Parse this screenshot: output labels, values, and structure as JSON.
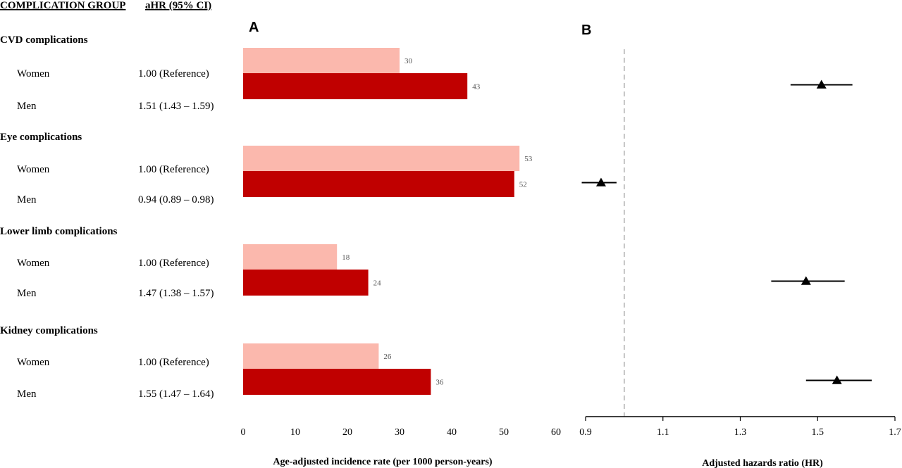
{
  "headers": {
    "group": "COMPLICATION GROUP",
    "ahr": "aHR (95% CI)"
  },
  "panel_a_label": "A",
  "panel_b_label": "B",
  "groups": [
    {
      "name": "CVD complications",
      "rows": [
        {
          "sex": "Women",
          "ahr_text": "1.00 (Reference)"
        },
        {
          "sex": "Men",
          "ahr_text": "1.51 (1.43 – 1.59)"
        }
      ]
    },
    {
      "name": "Eye complications",
      "rows": [
        {
          "sex": "Women",
          "ahr_text": "1.00 (Reference)"
        },
        {
          "sex": "Men",
          "ahr_text": "0.94 (0.89 – 0.98)"
        }
      ]
    },
    {
      "name": "Lower limb complications",
      "rows": [
        {
          "sex": "Women",
          "ahr_text": "1.00 (Reference)"
        },
        {
          "sex": "Men",
          "ahr_text": "1.47 (1.38 – 1.57)"
        }
      ]
    },
    {
      "name": "Kidney complications",
      "rows": [
        {
          "sex": "Women",
          "ahr_text": "1.00 (Reference)"
        },
        {
          "sex": "Men",
          "ahr_text": "1.55 (1.47 – 1.64)"
        }
      ]
    }
  ],
  "chart_data": [
    {
      "type": "bar",
      "orientation": "horizontal",
      "panel": "A",
      "categories": [
        "CVD complications",
        "Eye complications",
        "Lower limb complications",
        "Kidney complications"
      ],
      "series": [
        {
          "name": "Women",
          "values": [
            30,
            53,
            18,
            26
          ],
          "color": "#fbb8ad"
        },
        {
          "name": "Men",
          "values": [
            43,
            52,
            24,
            36
          ],
          "color": "#c00000"
        }
      ],
      "data_labels": [
        "30",
        "53",
        "18",
        "26",
        "43",
        "52",
        "24",
        "36"
      ],
      "xlabel": "Age-adjusted incidence rate (per 1000 person-years)",
      "xlim": [
        0,
        60
      ],
      "xticks": [
        "0",
        "10",
        "20",
        "30",
        "40",
        "50",
        "60"
      ],
      "grid": false
    },
    {
      "type": "scatter",
      "panel": "B",
      "categories": [
        "CVD complications",
        "Eye complications",
        "Lower limb complications",
        "Kidney complications"
      ],
      "points": [
        {
          "hr": 1.51,
          "lo": 1.43,
          "hi": 1.59
        },
        {
          "hr": 0.94,
          "lo": 0.89,
          "hi": 0.98
        },
        {
          "hr": 1.47,
          "lo": 1.38,
          "hi": 1.57
        },
        {
          "hr": 1.55,
          "lo": 1.47,
          "hi": 1.64
        }
      ],
      "reference_line": 1.0,
      "xlabel": "Adjusted hazards ratio (HR)",
      "xlim": [
        0.9,
        1.7
      ],
      "xticks": [
        "0.9",
        "1.1",
        "1.3",
        "1.5",
        "1.7"
      ],
      "marker": "triangle",
      "grid": false
    }
  ]
}
